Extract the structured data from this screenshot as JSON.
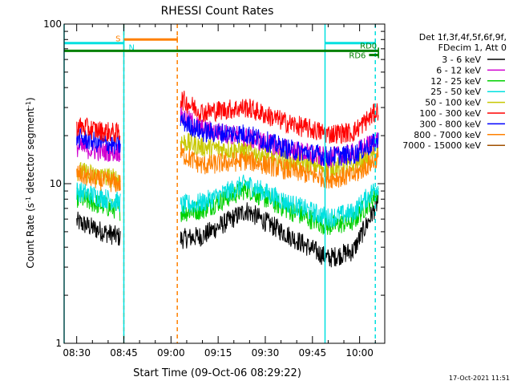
{
  "chart_data": {
    "type": "line",
    "title": "RHESSI Count Rates",
    "xlabel": "Start Time (09-Oct-06 08:29:22)",
    "ylabel": "Count Rate (s",
    "ylabel_sup": "-1",
    "ylabel_mid": " detector segment",
    "ylabel_sup2": "-1",
    "ylabel_end": ")",
    "yscale": "log",
    "ylim": [
      1,
      100
    ],
    "xlim": [
      "08:26",
      "10:08"
    ],
    "x_ticks": [
      "08:30",
      "08:45",
      "09:00",
      "09:15",
      "09:30",
      "09:45",
      "10:00"
    ],
    "y_ticks": [
      "1",
      "10",
      "100"
    ],
    "timestamp": "17-Oct-2021 11:51",
    "legend_header": [
      "Det 1f,3f,4f,5f,6f,9f,",
      "FDecim 1, Att 0"
    ],
    "data_gaps": [
      [
        "08:44",
        "09:03"
      ]
    ],
    "series": [
      {
        "name": "3 - 6 keV",
        "color": "#000000",
        "x": [
          "08:30",
          "08:37",
          "08:44",
          "09:03",
          "09:10",
          "09:24",
          "09:37",
          "09:50",
          "09:58",
          "10:06"
        ],
        "values": [
          5.8,
          5.1,
          4.6,
          4.5,
          4.7,
          6.8,
          4.8,
          3.4,
          3.8,
          7.8
        ]
      },
      {
        "name": "6 - 12 keV",
        "color": "#d000d0",
        "x": [
          "08:30",
          "08:37",
          "08:44",
          "09:03",
          "09:10",
          "09:24",
          "09:37",
          "09:50",
          "09:58",
          "10:06"
        ],
        "values": [
          17.0,
          16.0,
          15.8,
          27.0,
          22.0,
          19.5,
          16.5,
          14.5,
          15.5,
          19.0
        ]
      },
      {
        "name": "12 - 25 keV",
        "color": "#00d000",
        "x": [
          "08:30",
          "08:37",
          "08:44",
          "09:03",
          "09:10",
          "09:24",
          "09:37",
          "09:50",
          "09:58",
          "10:06"
        ],
        "values": [
          8.2,
          7.4,
          6.8,
          6.6,
          6.9,
          9.3,
          6.9,
          5.4,
          5.8,
          9.0
        ]
      },
      {
        "name": "25 - 50 keV",
        "color": "#00e0e0",
        "x": [
          "08:30",
          "08:37",
          "08:44",
          "09:03",
          "09:10",
          "09:24",
          "09:37",
          "09:50",
          "09:58",
          "10:06"
        ],
        "values": [
          9.0,
          8.3,
          7.6,
          7.3,
          7.6,
          10.0,
          7.6,
          6.1,
          6.6,
          9.8
        ]
      },
      {
        "name": "50 - 100 keV",
        "color": "#c8c800",
        "x": [
          "08:30",
          "08:37",
          "08:44",
          "09:03",
          "09:10",
          "09:24",
          "09:37",
          "09:50",
          "09:58",
          "10:06"
        ],
        "values": [
          12.0,
          11.2,
          10.6,
          18.5,
          17.0,
          16.0,
          14.0,
          12.5,
          13.0,
          15.5
        ]
      },
      {
        "name": "100 - 300 keV",
        "color": "#ff0000",
        "x": [
          "08:30",
          "08:37",
          "08:44",
          "09:03",
          "09:10",
          "09:24",
          "09:37",
          "09:50",
          "09:58",
          "10:06"
        ],
        "values": [
          23.0,
          21.5,
          20.5,
          34.0,
          28.0,
          30.0,
          24.0,
          20.5,
          21.0,
          29.0
        ]
      },
      {
        "name": "300 - 800 keV",
        "color": "#0000ff",
        "x": [
          "08:30",
          "08:37",
          "08:44",
          "09:03",
          "09:10",
          "09:24",
          "09:37",
          "09:50",
          "09:58",
          "10:06"
        ],
        "values": [
          19.5,
          18.0,
          17.3,
          25.0,
          21.0,
          20.5,
          16.5,
          14.8,
          15.2,
          18.5
        ]
      },
      {
        "name": "800 - 7000 keV",
        "color": "#ff8000",
        "x": [
          "08:30",
          "08:37",
          "08:44",
          "09:03",
          "09:10",
          "09:24",
          "09:37",
          "09:50",
          "09:58",
          "10:06"
        ],
        "values": [
          11.5,
          10.5,
          10.0,
          15.5,
          13.0,
          14.0,
          12.2,
          10.8,
          11.2,
          14.5
        ]
      },
      {
        "name": "7000 - 15000 keV",
        "color": "#a05000",
        "x": [],
        "values": []
      }
    ],
    "attenuator_bars": [
      {
        "label": "S",
        "color": "#ff8000",
        "y": 80,
        "x": [
          "08:45",
          "09:02"
        ]
      },
      {
        "label": "N",
        "color": "#00e0e0",
        "y": 76,
        "x": [
          "08:26",
          "08:45"
        ]
      },
      {
        "label": "",
        "color": "#00e0e0",
        "y": 76,
        "x": [
          "09:49",
          "10:05"
        ]
      },
      {
        "label": "RD0",
        "color": "#008000",
        "y": 68,
        "x": [
          "08:26",
          "10:06"
        ]
      },
      {
        "label": "RD6",
        "color": "#008000",
        "y": 64,
        "x": [
          "10:03",
          "10:06"
        ]
      }
    ],
    "vertical_lines": [
      {
        "x": "08:26",
        "color": "#00e0e0",
        "style": "solid"
      },
      {
        "x": "08:45",
        "color": "#ff8000",
        "style": "dashed"
      },
      {
        "x": "08:45",
        "color": "#00e0e0",
        "style": "solid"
      },
      {
        "x": "09:02",
        "color": "#ff8000",
        "style": "dashed"
      },
      {
        "x": "09:49",
        "color": "#00e0e0",
        "style": "solid"
      },
      {
        "x": "10:05",
        "color": "#00e0e0",
        "style": "dashed"
      }
    ]
  }
}
